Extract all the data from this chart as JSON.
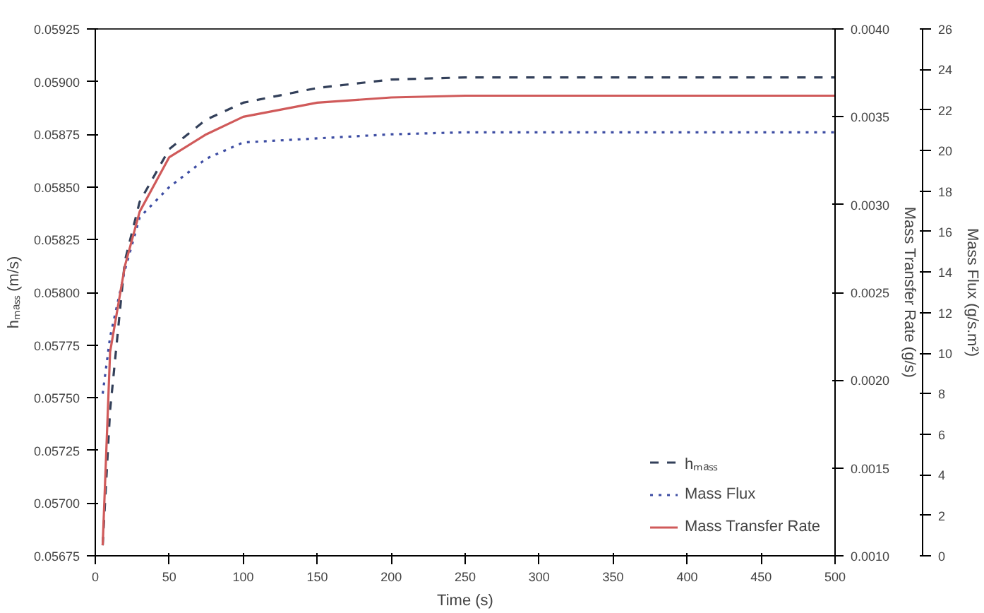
{
  "chart_data": {
    "type": "line",
    "xlabel": "Time (s)",
    "ylabel": "hₘₐₛₛ (m/s)",
    "y2label": "Mass Transfer Rate (g/s)",
    "y3label": "Mass Flux (g/s.m²)",
    "xlim": [
      0,
      500
    ],
    "xticks": [
      0,
      50,
      100,
      150,
      200,
      250,
      300,
      350,
      400,
      450,
      500
    ],
    "ylim": [
      0.05675,
      0.05925
    ],
    "yticks": [
      {
        "value": 0.05675,
        "label": "0.05675"
      },
      {
        "value": 0.057,
        "label": "0.05700"
      },
      {
        "value": 0.05725,
        "label": "0.05725"
      },
      {
        "value": 0.0575,
        "label": "0.05750"
      },
      {
        "value": 0.05775,
        "label": "0.05775"
      },
      {
        "value": 0.058,
        "label": "0.05800"
      },
      {
        "value": 0.05825,
        "label": "0.05825"
      },
      {
        "value": 0.0585,
        "label": "0.05850"
      },
      {
        "value": 0.05875,
        "label": "0.05875"
      },
      {
        "value": 0.059,
        "label": "0.05900"
      },
      {
        "value": 0.05925,
        "label": "0.05925"
      }
    ],
    "y2lim": [
      0.001,
      0.004
    ],
    "y2ticks": [
      {
        "value": 0.001,
        "label": "0.0010"
      },
      {
        "value": 0.0015,
        "label": "0.0015"
      },
      {
        "value": 0.002,
        "label": "0.0020"
      },
      {
        "value": 0.0025,
        "label": "0.0025"
      },
      {
        "value": 0.003,
        "label": "0.0030"
      },
      {
        "value": 0.0035,
        "label": "0.0035"
      },
      {
        "value": 0.004,
        "label": "0.0040"
      }
    ],
    "y3lim": [
      0,
      26
    ],
    "y3ticks": [
      0,
      2,
      4,
      6,
      8,
      10,
      12,
      14,
      16,
      18,
      20,
      22,
      24,
      26
    ],
    "grid": false,
    "legend": "bottom right",
    "marker": "none",
    "series": [
      {
        "name": "hₘₐₛₛ",
        "color": "#33405a",
        "line_style": "dashed",
        "axis": "y",
        "x": [
          5,
          10,
          20,
          30,
          50,
          75,
          100,
          150,
          200,
          250,
          300,
          400,
          500
        ],
        "values": [
          0.0568,
          0.05744,
          0.05815,
          0.05843,
          0.05868,
          0.05882,
          0.0589,
          0.05897,
          0.05901,
          0.05902,
          0.05902,
          0.05902,
          0.05902
        ]
      },
      {
        "name": "Mass Flux",
        "color": "#3d4da3",
        "line_style": "dotted",
        "axis": "y3",
        "x": [
          5,
          10,
          20,
          30,
          50,
          75,
          100,
          150,
          200,
          250,
          300,
          400,
          500
        ],
        "values": [
          8.0,
          10.8,
          14.1,
          16.7,
          18.2,
          19.6,
          20.4,
          20.6,
          20.8,
          20.9,
          20.9,
          20.9,
          20.9
        ]
      },
      {
        "name": "Mass Transfer Rate",
        "color": "#d05a5a",
        "line_style": "solid",
        "axis": "y2",
        "x": [
          5,
          10,
          20,
          30,
          50,
          75,
          100,
          150,
          200,
          250,
          300,
          400,
          500
        ],
        "values": [
          0.00106,
          0.00216,
          0.00265,
          0.00296,
          0.00327,
          0.0034,
          0.0035,
          0.00358,
          0.00361,
          0.00362,
          0.00362,
          0.00362,
          0.00362
        ]
      }
    ]
  }
}
